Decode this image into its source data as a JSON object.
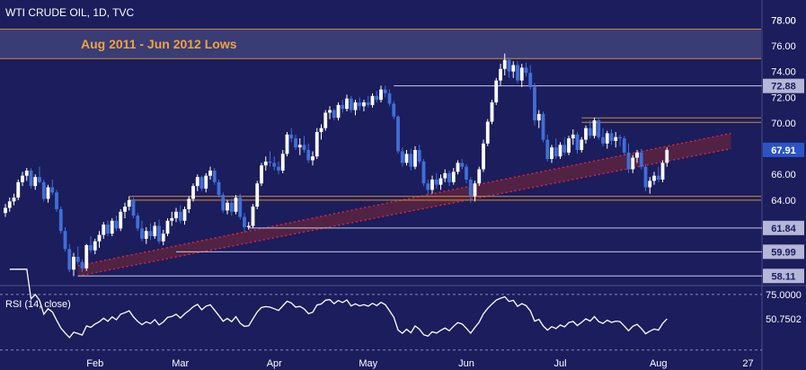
{
  "header": {
    "title": "WTI CRUDE OIL, 1D, TVC"
  },
  "zone_label": "Aug 2011 - Jun 2012 Lows",
  "colors": {
    "background": "#1b1d5c",
    "up": "#ffffff",
    "down": "#3f6fd8",
    "zone": "#3a3c76",
    "zone_border": "#d08a38",
    "trendline": "#e0283a",
    "channel_fill": "#5a2340",
    "level_line": "#c9c9e6",
    "rsi_line": "#ffffff",
    "axis_text": "#ffffff",
    "zone_text": "#f2a23c"
  },
  "chart_data": [
    {
      "type": "candlestick",
      "title": "WTI CRUDE OIL, 1D, TVC",
      "timeframe": "1D",
      "ylim": [
        57.5,
        79
      ],
      "y_ticks": [
        "78.00",
        "76.00",
        "74.00",
        "72.00",
        "70.00",
        "68.00",
        "66.00",
        "64.00"
      ],
      "x_labels": [
        "Feb",
        "Mar",
        "Apr",
        "May",
        "Jun",
        "Jul",
        "Aug",
        "27"
      ],
      "x_label_index": [
        21,
        41,
        63,
        85,
        108,
        130,
        153,
        174
      ],
      "last_index": 168,
      "resistance_zone": {
        "label": "Aug 2011 - Jun 2012 Lows",
        "low": 75.0,
        "high": 77.3
      },
      "horizontal_levels": [
        {
          "label": "72.88",
          "value": 72.88,
          "from": 91,
          "kind": "line"
        },
        {
          "label": "61.84",
          "value": 61.84,
          "from": 57,
          "kind": "line"
        },
        {
          "label": "59.99",
          "value": 59.99,
          "from": 40,
          "kind": "line"
        },
        {
          "label": "58.11",
          "value": 58.11,
          "from": 17,
          "kind": "line"
        },
        {
          "label": "",
          "value": 70.4,
          "from": 135,
          "kind": "zone_top"
        },
        {
          "label": "",
          "value": 70.05,
          "from": 135,
          "kind": "zone_bottom"
        },
        {
          "label": "",
          "value": 64.3,
          "from": 29,
          "kind": "zone_top"
        },
        {
          "label": "",
          "value": 64.0,
          "from": 29,
          "kind": "zone_bottom"
        }
      ],
      "trend_channel": {
        "start_index": 17,
        "end_index": 170,
        "lower": [
          58.1,
          68.0
        ],
        "upper": [
          58.9,
          69.2
        ]
      },
      "price_labels": [
        {
          "label": "78.00",
          "value": 78.0,
          "highlight": false
        },
        {
          "label": "67.91",
          "value": 67.91,
          "highlight": true
        }
      ],
      "ohlc": [
        [
          63.0,
          63.7,
          62.7,
          63.4
        ],
        [
          63.4,
          64.2,
          63.1,
          63.9
        ],
        [
          63.9,
          64.5,
          63.6,
          64.2
        ],
        [
          64.2,
          65.6,
          64.0,
          65.4
        ],
        [
          65.4,
          66.2,
          65.1,
          65.9
        ],
        [
          65.9,
          66.5,
          65.5,
          66.3
        ],
        [
          66.3,
          66.5,
          64.9,
          65.1
        ],
        [
          65.1,
          66.0,
          64.8,
          65.8
        ],
        [
          65.8,
          66.6,
          65.3,
          65.4
        ],
        [
          65.4,
          65.6,
          63.9,
          64.1
        ],
        [
          64.1,
          65.2,
          63.8,
          65.0
        ],
        [
          65.0,
          65.6,
          64.4,
          64.6
        ],
        [
          64.6,
          64.8,
          63.1,
          63.3
        ],
        [
          63.3,
          63.5,
          61.4,
          61.6
        ],
        [
          61.6,
          61.9,
          60.0,
          60.2
        ],
        [
          60.2,
          60.6,
          58.4,
          58.6
        ],
        [
          58.6,
          59.9,
          58.1,
          59.6
        ],
        [
          59.6,
          60.4,
          59.0,
          59.2
        ],
        [
          59.2,
          59.4,
          58.4,
          58.7
        ],
        [
          58.7,
          60.6,
          58.5,
          60.5
        ],
        [
          60.5,
          61.2,
          59.9,
          60.1
        ],
        [
          60.1,
          61.0,
          59.8,
          60.8
        ],
        [
          60.8,
          61.6,
          60.3,
          61.3
        ],
        [
          61.3,
          62.3,
          61.0,
          62.1
        ],
        [
          62.1,
          62.4,
          61.2,
          61.4
        ],
        [
          61.4,
          62.6,
          61.2,
          62.4
        ],
        [
          62.4,
          62.8,
          61.6,
          61.8
        ],
        [
          61.8,
          63.3,
          61.6,
          63.1
        ],
        [
          63.1,
          63.8,
          62.6,
          63.5
        ],
        [
          63.5,
          64.3,
          63.2,
          64.0
        ],
        [
          64.0,
          64.2,
          62.6,
          62.8
        ],
        [
          62.8,
          63.0,
          61.6,
          61.8
        ],
        [
          61.8,
          62.4,
          60.8,
          61.0
        ],
        [
          61.0,
          61.9,
          60.6,
          61.6
        ],
        [
          61.6,
          62.2,
          60.9,
          61.2
        ],
        [
          61.2,
          62.3,
          61.0,
          62.0
        ],
        [
          62.0,
          62.5,
          60.6,
          60.8
        ],
        [
          60.8,
          61.7,
          60.5,
          61.4
        ],
        [
          61.4,
          62.6,
          61.2,
          62.4
        ],
        [
          62.4,
          63.1,
          62.0,
          62.6
        ],
        [
          62.6,
          63.4,
          62.3,
          63.1
        ],
        [
          63.1,
          63.6,
          62.2,
          62.4
        ],
        [
          62.4,
          63.5,
          62.1,
          63.3
        ],
        [
          63.3,
          64.3,
          63.0,
          64.1
        ],
        [
          64.1,
          65.3,
          63.9,
          65.1
        ],
        [
          65.1,
          66.0,
          64.7,
          65.8
        ],
        [
          65.8,
          65.9,
          64.7,
          64.9
        ],
        [
          64.9,
          66.1,
          64.6,
          65.9
        ],
        [
          65.9,
          66.6,
          65.6,
          66.3
        ],
        [
          66.3,
          66.5,
          65.2,
          65.4
        ],
        [
          65.4,
          65.6,
          64.2,
          64.4
        ],
        [
          64.4,
          64.6,
          63.0,
          63.2
        ],
        [
          63.2,
          64.0,
          62.9,
          63.8
        ],
        [
          63.8,
          64.1,
          62.8,
          63.1
        ],
        [
          63.1,
          64.4,
          62.9,
          64.2
        ],
        [
          64.2,
          64.5,
          62.5,
          62.7
        ],
        [
          62.7,
          63.0,
          61.5,
          61.9
        ],
        [
          61.9,
          62.3,
          61.7,
          62.0
        ],
        [
          62.0,
          63.7,
          61.8,
          63.5
        ],
        [
          63.5,
          65.5,
          63.3,
          65.3
        ],
        [
          65.3,
          66.9,
          65.1,
          66.7
        ],
        [
          66.7,
          67.4,
          66.3,
          67.0
        ],
        [
          67.0,
          67.8,
          66.6,
          66.9
        ],
        [
          66.9,
          67.4,
          66.3,
          66.6
        ],
        [
          66.6,
          67.0,
          66.0,
          66.3
        ],
        [
          66.3,
          67.9,
          66.1,
          67.6
        ],
        [
          67.6,
          69.3,
          67.4,
          69.1
        ],
        [
          69.1,
          69.6,
          68.5,
          68.8
        ],
        [
          68.8,
          69.1,
          67.9,
          68.1
        ],
        [
          68.1,
          68.8,
          67.5,
          68.3
        ],
        [
          68.3,
          69.0,
          67.7,
          67.9
        ],
        [
          67.9,
          68.4,
          66.9,
          67.1
        ],
        [
          67.1,
          67.8,
          66.7,
          67.4
        ],
        [
          67.4,
          69.6,
          67.2,
          69.3
        ],
        [
          69.3,
          69.9,
          68.7,
          69.6
        ],
        [
          69.6,
          71.0,
          69.4,
          70.8
        ],
        [
          70.8,
          71.3,
          70.3,
          71.0
        ],
        [
          71.0,
          71.1,
          70.2,
          70.4
        ],
        [
          70.4,
          71.6,
          70.2,
          71.4
        ],
        [
          71.4,
          71.8,
          70.8,
          71.1
        ],
        [
          71.1,
          72.2,
          70.9,
          71.9
        ],
        [
          71.9,
          72.1,
          70.8,
          71.0
        ],
        [
          71.0,
          71.8,
          70.6,
          71.6
        ],
        [
          71.6,
          72.0,
          71.0,
          71.3
        ],
        [
          71.3,
          71.8,
          70.9,
          71.6
        ],
        [
          71.6,
          72.1,
          71.2,
          71.4
        ],
        [
          71.4,
          72.3,
          71.2,
          72.1
        ],
        [
          72.1,
          72.5,
          71.6,
          71.8
        ],
        [
          71.8,
          72.9,
          71.6,
          72.6
        ],
        [
          72.6,
          72.9,
          72.0,
          72.3
        ],
        [
          72.3,
          72.6,
          71.3,
          71.5
        ],
        [
          71.5,
          71.7,
          70.3,
          70.5
        ],
        [
          70.5,
          70.6,
          67.6,
          67.8
        ],
        [
          67.8,
          68.1,
          66.6,
          66.9
        ],
        [
          66.9,
          67.9,
          66.7,
          67.6
        ],
        [
          67.6,
          68.0,
          66.3,
          66.6
        ],
        [
          66.6,
          68.2,
          66.4,
          67.9
        ],
        [
          67.9,
          68.3,
          66.8,
          67.0
        ],
        [
          67.0,
          67.2,
          65.1,
          65.3
        ],
        [
          65.3,
          65.6,
          64.4,
          64.8
        ],
        [
          64.8,
          65.9,
          64.5,
          65.6
        ],
        [
          65.6,
          66.1,
          64.9,
          65.2
        ],
        [
          65.2,
          66.0,
          64.8,
          65.7
        ],
        [
          65.7,
          66.4,
          65.4,
          66.1
        ],
        [
          66.1,
          66.3,
          65.1,
          65.4
        ],
        [
          65.4,
          66.5,
          65.2,
          66.2
        ],
        [
          66.2,
          67.1,
          66.0,
          66.9
        ],
        [
          66.9,
          67.2,
          66.4,
          66.6
        ],
        [
          66.6,
          66.8,
          65.3,
          65.6
        ],
        [
          65.6,
          65.8,
          63.8,
          64.3
        ],
        [
          64.3,
          65.5,
          63.9,
          65.3
        ],
        [
          65.3,
          66.6,
          65.1,
          66.4
        ],
        [
          66.4,
          68.7,
          66.2,
          68.4
        ],
        [
          68.4,
          70.3,
          68.2,
          70.1
        ],
        [
          70.1,
          71.8,
          69.9,
          71.6
        ],
        [
          71.6,
          73.5,
          71.4,
          73.3
        ],
        [
          73.3,
          74.6,
          72.9,
          74.2
        ],
        [
          74.2,
          75.4,
          73.7,
          74.9
        ],
        [
          74.9,
          75.1,
          73.5,
          74.0
        ],
        [
          74.0,
          74.8,
          73.5,
          74.5
        ],
        [
          74.5,
          74.8,
          73.1,
          73.3
        ],
        [
          73.3,
          74.6,
          72.8,
          74.3
        ],
        [
          74.3,
          74.7,
          73.6,
          73.9
        ],
        [
          73.9,
          74.5,
          72.6,
          72.8
        ],
        [
          72.8,
          73.1,
          69.8,
          70.2
        ],
        [
          70.2,
          71.0,
          69.6,
          70.7
        ],
        [
          70.7,
          70.9,
          68.5,
          68.7
        ],
        [
          68.7,
          69.1,
          67.0,
          67.2
        ],
        [
          67.2,
          68.3,
          66.9,
          68.1
        ],
        [
          68.1,
          68.8,
          67.2,
          67.4
        ],
        [
          67.4,
          68.5,
          67.2,
          68.3
        ],
        [
          68.3,
          68.9,
          67.5,
          67.7
        ],
        [
          67.7,
          69.0,
          67.5,
          68.8
        ],
        [
          68.8,
          69.5,
          68.3,
          69.1
        ],
        [
          69.1,
          69.3,
          67.6,
          67.9
        ],
        [
          67.9,
          68.9,
          67.7,
          68.7
        ],
        [
          68.7,
          69.8,
          68.4,
          69.6
        ],
        [
          69.6,
          70.2,
          68.8,
          69.0
        ],
        [
          69.0,
          70.4,
          68.8,
          70.2
        ],
        [
          70.2,
          70.4,
          68.7,
          68.9
        ],
        [
          68.9,
          69.6,
          68.2,
          68.4
        ],
        [
          68.4,
          69.4,
          68.0,
          69.2
        ],
        [
          69.2,
          69.5,
          68.3,
          68.6
        ],
        [
          68.6,
          69.3,
          68.1,
          68.9
        ],
        [
          68.9,
          69.1,
          68.2,
          68.8
        ],
        [
          68.8,
          69.0,
          67.5,
          67.7
        ],
        [
          67.7,
          68.4,
          66.1,
          66.4
        ],
        [
          66.4,
          67.5,
          66.1,
          67.3
        ],
        [
          67.3,
          67.9,
          66.9,
          67.7
        ],
        [
          67.7,
          68.0,
          66.4,
          66.6
        ],
        [
          66.6,
          66.8,
          64.7,
          65.0
        ],
        [
          65.0,
          65.8,
          64.5,
          65.5
        ],
        [
          65.5,
          66.2,
          65.2,
          65.9
        ],
        [
          65.9,
          66.6,
          65.4,
          65.6
        ],
        [
          65.6,
          67.1,
          65.4,
          66.9
        ],
        [
          66.9,
          68.1,
          66.6,
          67.91
        ]
      ]
    },
    {
      "type": "line",
      "title": "RSI (14, close)",
      "ylim": [
        18,
        82
      ],
      "levels": [
        {
          "label": "75.0000",
          "value": 75.0,
          "axis_label": true
        },
        {
          "label": "",
          "value": 20.0,
          "axis_label": false
        }
      ],
      "last_value": 50.7502,
      "last_label": "50.7502",
      "series": [
        {
          "name": "RSI (14, close)",
          "values": []
        }
      ]
    }
  ]
}
